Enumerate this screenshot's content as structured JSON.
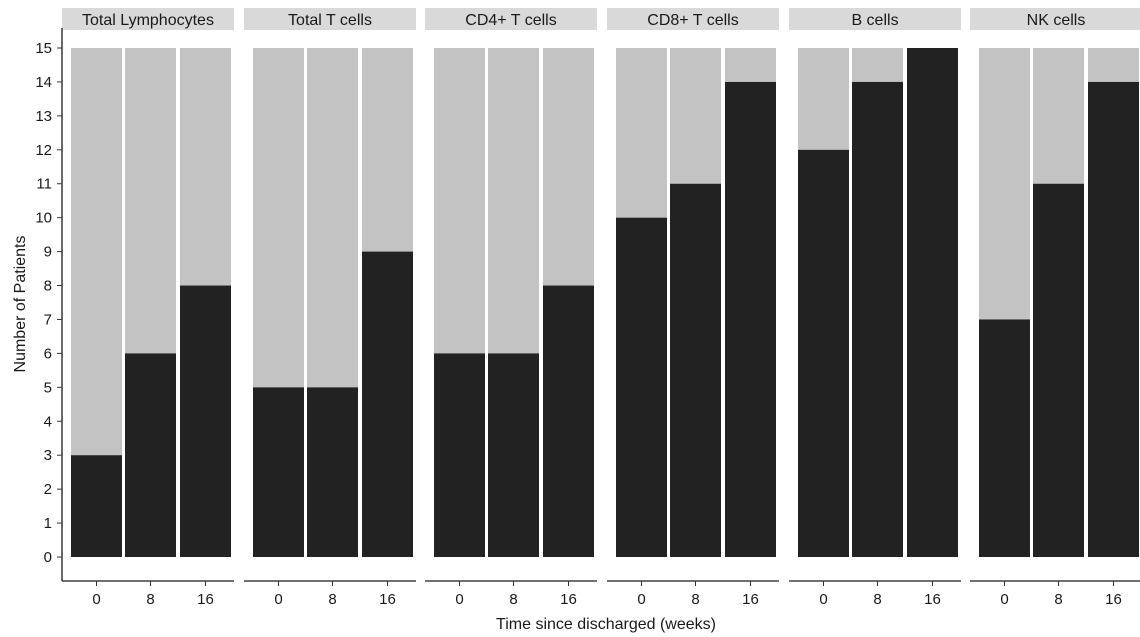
{
  "chart_data": {
    "type": "bar",
    "stacked": true,
    "title": "",
    "xlabel": "Time since discharged (weeks)",
    "ylabel": "Number of Patients",
    "ylim": [
      0,
      15
    ],
    "yticks": [
      0,
      1,
      2,
      3,
      4,
      5,
      6,
      7,
      8,
      9,
      10,
      11,
      12,
      13,
      14,
      15
    ],
    "categories": [
      "0",
      "8",
      "16"
    ],
    "grid": false,
    "legend": "none",
    "colors": {
      "dark": "#222222",
      "light": "#c3c3c3",
      "strip": "#d9d9d9"
    },
    "panels": [
      {
        "label": "Total Lymphocytes",
        "dark": [
          3,
          6,
          8
        ],
        "light": [
          12,
          9,
          7
        ]
      },
      {
        "label": "Total T cells",
        "dark": [
          5,
          5,
          9
        ],
        "light": [
          10,
          10,
          6
        ]
      },
      {
        "label": "CD4+ T cells",
        "dark": [
          6,
          6,
          8
        ],
        "light": [
          9,
          9,
          7
        ]
      },
      {
        "label": "CD8+ T cells",
        "dark": [
          10,
          11,
          14
        ],
        "light": [
          5,
          4,
          1
        ]
      },
      {
        "label": "B cells",
        "dark": [
          12,
          14,
          15
        ],
        "light": [
          3,
          1,
          0
        ]
      },
      {
        "label": "NK cells",
        "dark": [
          7,
          11,
          14
        ],
        "light": [
          8,
          4,
          1
        ]
      }
    ]
  }
}
